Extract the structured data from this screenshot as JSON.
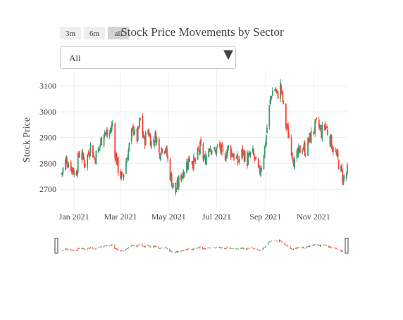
{
  "chart_data": {
    "type": "candlestick",
    "title": "Stock Price Movements by Sector",
    "ylabel": "Stock Price",
    "xlabel": "",
    "ylim": [
      2630,
      3160
    ],
    "xlim": [
      "2020-12-14",
      "2021-12-14"
    ],
    "y_ticks": [
      2700,
      2800,
      2900,
      3000,
      3100
    ],
    "x_ticks": [
      {
        "date": "2021-01-01",
        "label": "Jan 2021"
      },
      {
        "date": "2021-03-01",
        "label": "Mar 2021"
      },
      {
        "date": "2021-05-01",
        "label": "May 2021"
      },
      {
        "date": "2021-07-01",
        "label": "Jul 2021"
      },
      {
        "date": "2021-09-01",
        "label": "Sep 2021"
      },
      {
        "date": "2021-11-01",
        "label": "Nov 2021"
      }
    ],
    "grid": true,
    "increasing_color": "#3d9970",
    "decreasing_color": "#ff4136",
    "start_date": "2020-12-16",
    "end_date": "2021-12-14",
    "close_path": [
      [
        "2020-12-16",
        2760
      ],
      [
        "2020-12-22",
        2815
      ],
      [
        "2020-12-28",
        2790
      ],
      [
        "2021-01-03",
        2755
      ],
      [
        "2021-01-08",
        2850
      ],
      [
        "2021-01-15",
        2800
      ],
      [
        "2021-01-22",
        2870
      ],
      [
        "2021-01-27",
        2820
      ],
      [
        "2021-02-02",
        2860
      ],
      [
        "2021-02-08",
        2930
      ],
      [
        "2021-02-13",
        2900
      ],
      [
        "2021-02-19",
        2955
      ],
      [
        "2021-02-22",
        2845
      ],
      [
        "2021-02-26",
        2780
      ],
      [
        "2021-03-03",
        2740
      ],
      [
        "2021-03-08",
        2810
      ],
      [
        "2021-03-13",
        2880
      ],
      [
        "2021-03-17",
        2940
      ],
      [
        "2021-03-21",
        2880
      ],
      [
        "2021-03-26",
        2970
      ],
      [
        "2021-03-31",
        2885
      ],
      [
        "2021-04-05",
        2930
      ],
      [
        "2021-04-10",
        2870
      ],
      [
        "2021-04-15",
        2910
      ],
      [
        "2021-04-19",
        2840
      ],
      [
        "2021-04-25",
        2880
      ],
      [
        "2021-04-29",
        2830
      ],
      [
        "2021-05-02",
        2770
      ],
      [
        "2021-05-06",
        2720
      ],
      [
        "2021-05-10",
        2690
      ],
      [
        "2021-05-15",
        2740
      ],
      [
        "2021-05-21",
        2780
      ],
      [
        "2021-05-28",
        2825
      ],
      [
        "2021-06-03",
        2800
      ],
      [
        "2021-06-10",
        2860
      ],
      [
        "2021-06-16",
        2810
      ],
      [
        "2021-06-22",
        2875
      ],
      [
        "2021-06-28",
        2840
      ],
      [
        "2021-07-04",
        2870
      ],
      [
        "2021-07-10",
        2820
      ],
      [
        "2021-07-16",
        2860
      ],
      [
        "2021-07-22",
        2835
      ],
      [
        "2021-07-28",
        2805
      ],
      [
        "2021-08-03",
        2845
      ],
      [
        "2021-08-09",
        2810
      ],
      [
        "2021-08-15",
        2845
      ],
      [
        "2021-08-20",
        2800
      ],
      [
        "2021-08-24",
        2760
      ],
      [
        "2021-08-28",
        2810
      ],
      [
        "2021-09-01",
        2880
      ],
      [
        "2021-09-04",
        2970
      ],
      [
        "2021-09-08",
        3060
      ],
      [
        "2021-09-12",
        3100
      ],
      [
        "2021-09-16",
        3060
      ],
      [
        "2021-09-20",
        3100
      ],
      [
        "2021-09-23",
        3040
      ],
      [
        "2021-09-27",
        2950
      ],
      [
        "2021-10-01",
        2900
      ],
      [
        "2021-10-04",
        2860
      ],
      [
        "2021-10-08",
        2800
      ],
      [
        "2021-10-12",
        2830
      ],
      [
        "2021-10-17",
        2870
      ],
      [
        "2021-10-22",
        2850
      ],
      [
        "2021-10-27",
        2895
      ],
      [
        "2021-11-01",
        2930
      ],
      [
        "2021-11-06",
        2955
      ],
      [
        "2021-11-11",
        2920
      ],
      [
        "2021-11-16",
        2950
      ],
      [
        "2021-11-21",
        2905
      ],
      [
        "2021-11-26",
        2860
      ],
      [
        "2021-12-01",
        2820
      ],
      [
        "2021-12-05",
        2780
      ],
      [
        "2021-12-09",
        2740
      ],
      [
        "2021-12-14",
        2770
      ]
    ]
  },
  "range_selector": {
    "buttons": [
      "3m",
      "6m",
      "all"
    ],
    "active": "all"
  },
  "dropdown": {
    "selected": "All",
    "arrow": "▼"
  },
  "rangeslider": {
    "visible": true
  }
}
